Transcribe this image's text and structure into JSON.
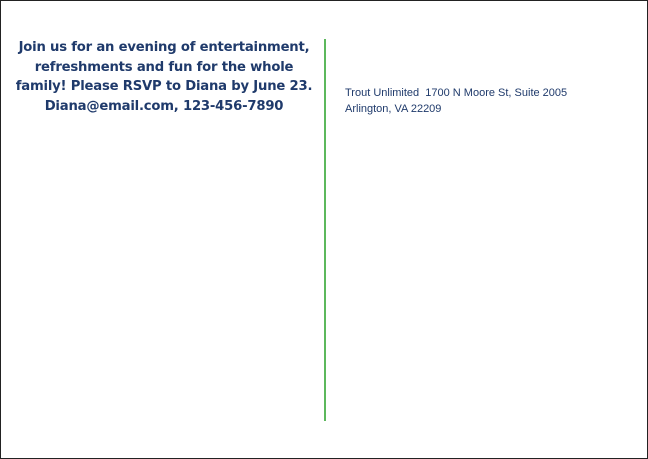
{
  "message": {
    "lines": [
      "Join us for an evening of entertainment,",
      "refreshments and fun for the whole",
      "family! Please RSVP to Diana by June 23.",
      "Diana@email.com, 123-456-7890"
    ]
  },
  "address": {
    "line1": "Trout Unlimited  1700 N Moore St, Suite 2005",
    "line2": "Arlington, VA 22209"
  },
  "colors": {
    "text": "#1f3a6b",
    "divider": "#5cb85c"
  }
}
